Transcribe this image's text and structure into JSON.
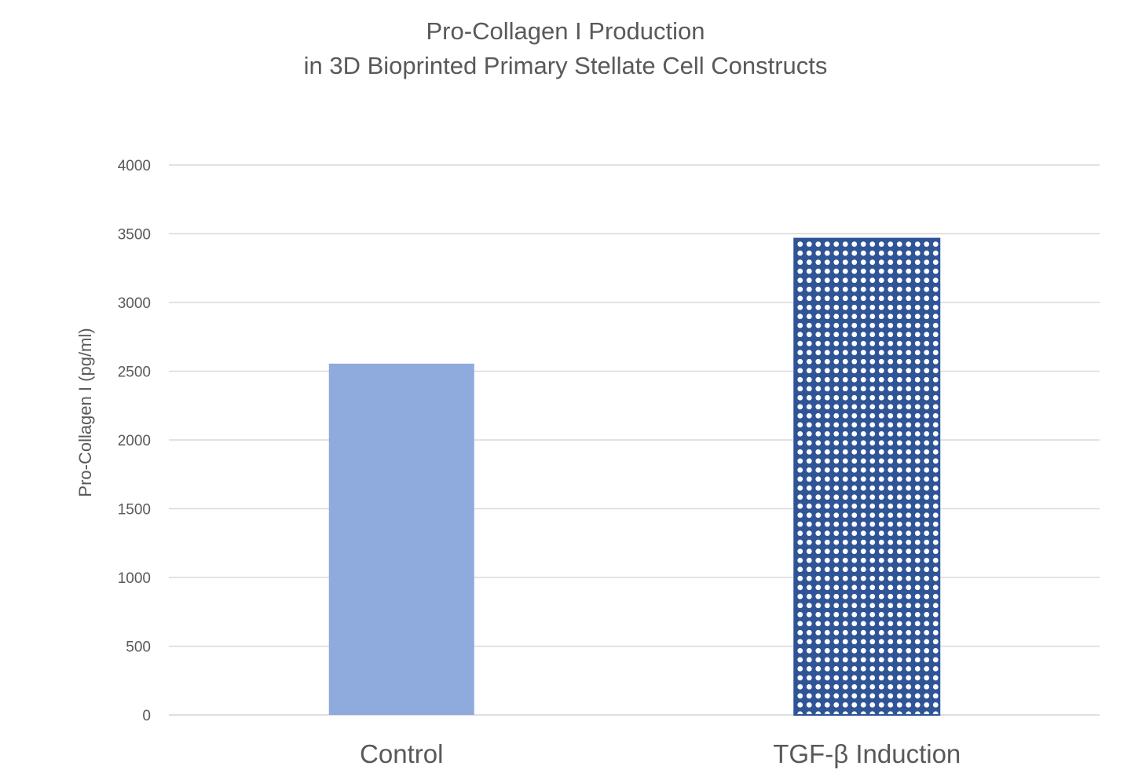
{
  "chart_data": {
    "type": "bar",
    "title": [
      "Pro-Collagen I Production",
      "in 3D Bioprinted Primary Stellate Cell Constructs"
    ],
    "xlabel": "",
    "ylabel": "Pro-Collagen I (pg/ml)",
    "categories": [
      "Control",
      "TGF-β Induction"
    ],
    "values": [
      2555,
      3465
    ],
    "ylim": [
      0,
      4000
    ],
    "yticks": [
      0,
      500,
      1000,
      1500,
      2000,
      2500,
      3000,
      3500,
      4000
    ],
    "grid": true,
    "legend": "none",
    "bar_styles": [
      {
        "fill": "#8faadc",
        "pattern": "solid"
      },
      {
        "fill": "#2f5597",
        "pattern": "dotted-grid"
      }
    ],
    "colors": {
      "gridline": "#d9d9d9",
      "axis_text": "#595959"
    }
  }
}
